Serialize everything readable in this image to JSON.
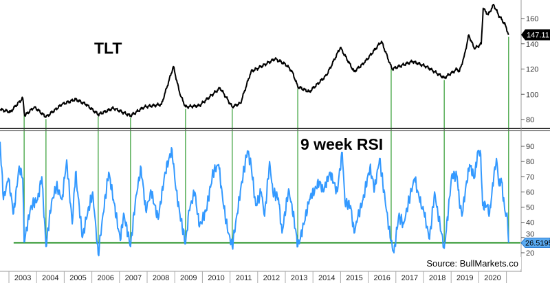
{
  "chart_data": [
    {
      "type": "line",
      "title": "TLT",
      "panel": "top",
      "ylim": [
        70,
        175
      ],
      "yticks": [
        80,
        100,
        120,
        140,
        160
      ],
      "last_value_label": "147.11",
      "last_value": 147.11,
      "line_color": "#000000",
      "x": [
        2002.68,
        2003.05,
        2003.5,
        2003.57,
        2003.92,
        2004.34,
        2004.92,
        2005.41,
        2005.79,
        2006.23,
        2006.78,
        2007.4,
        2007.9,
        2008.52,
        2008.95,
        2009.19,
        2009.39,
        2009.89,
        2010.64,
        2011.08,
        2011.38,
        2011.76,
        2012.13,
        2012.63,
        2013.0,
        2013.25,
        2013.45,
        2013.87,
        2014.49,
        2014.99,
        2015.49,
        2015.86,
        2016.48,
        2016.86,
        2017.6,
        2018.1,
        2018.75,
        2019.22,
        2019.3,
        2019.47,
        2019.64,
        2019.84,
        2020.09,
        2020.16,
        2020.34,
        2020.54,
        2020.71,
        2020.96,
        2021.08
      ],
      "y": [
        88,
        86,
        97,
        83,
        90,
        82,
        92,
        96,
        92,
        84,
        89,
        83,
        90,
        92,
        122,
        100,
        90,
        91,
        105,
        90,
        93,
        118,
        122,
        128,
        124,
        118,
        106,
        102,
        115,
        137,
        118,
        125,
        142,
        120,
        126,
        122,
        113,
        120,
        118,
        130,
        147,
        136,
        140,
        168,
        163,
        171,
        163,
        155,
        147.11
      ]
    },
    {
      "type": "line",
      "title": "9 week RSI",
      "panel": "bottom",
      "ylim": [
        16,
        98
      ],
      "yticks": [
        20,
        30,
        40,
        50,
        60,
        70,
        80,
        90
      ],
      "last_value_label": "26.5195",
      "last_value": 26.5195,
      "line_color": "#3399ff",
      "support_level": 26.5195,
      "support_color": "#1e8c1e",
      "x": [
        2002.68,
        2002.8,
        2002.98,
        2003.17,
        2003.37,
        2003.5,
        2003.55,
        2003.8,
        2004.04,
        2004.19,
        2004.34,
        2004.54,
        2004.72,
        2004.92,
        2005.09,
        2005.29,
        2005.41,
        2005.66,
        2005.79,
        2006.03,
        2006.23,
        2006.41,
        2006.61,
        2006.78,
        2007.03,
        2007.15,
        2007.4,
        2007.58,
        2007.78,
        2007.95,
        2008.15,
        2008.4,
        2008.65,
        2008.9,
        2009.04,
        2009.19,
        2009.39,
        2009.52,
        2009.72,
        2009.89,
        2010.14,
        2010.39,
        2010.59,
        2010.76,
        2010.94,
        2011.08,
        2011.26,
        2011.43,
        2011.63,
        2011.76,
        2011.93,
        2012.13,
        2012.25,
        2012.43,
        2012.55,
        2012.75,
        2012.88,
        2013.12,
        2013.32,
        2013.45,
        2013.62,
        2013.87,
        2014.07,
        2014.24,
        2014.37,
        2014.62,
        2014.87,
        2015.06,
        2015.16,
        2015.36,
        2015.49,
        2015.61,
        2015.81,
        2016.06,
        2016.23,
        2016.41,
        2016.61,
        2016.81,
        2016.93,
        2017.1,
        2017.28,
        2017.48,
        2017.68,
        2017.85,
        2018.02,
        2018.22,
        2018.4,
        2018.52,
        2018.75,
        2018.9,
        2019.02,
        2019.22,
        2019.29,
        2019.39,
        2019.52,
        2019.67,
        2019.84,
        2019.97,
        2020.07,
        2020.14,
        2020.29,
        2020.39,
        2020.54,
        2020.64,
        2020.74,
        2020.81,
        2020.94,
        2021.04,
        2021.06,
        2021.08
      ],
      "y": [
        93,
        55,
        69,
        46,
        77,
        69,
        27,
        51,
        55,
        70,
        24,
        53,
        64,
        55,
        81,
        39,
        73,
        30,
        42,
        60,
        19,
        46,
        73,
        55,
        28,
        46,
        24,
        55,
        76,
        48,
        60,
        42,
        73,
        88,
        62,
        45,
        26,
        48,
        60,
        37,
        48,
        73,
        78,
        51,
        33,
        24,
        46,
        67,
        87,
        78,
        51,
        60,
        44,
        80,
        60,
        56,
        33,
        62,
        42,
        24,
        35,
        55,
        62,
        67,
        60,
        73,
        60,
        86,
        53,
        51,
        33,
        42,
        55,
        76,
        62,
        82,
        55,
        28,
        20,
        44,
        39,
        55,
        69,
        55,
        46,
        29,
        60,
        46,
        23,
        48,
        71,
        70,
        55,
        44,
        62,
        78,
        69,
        87,
        85,
        51,
        51,
        46,
        69,
        82,
        64,
        69,
        48,
        42,
        33,
        26.52
      ]
    }
  ],
  "rsi_low_markers": [
    2003.55,
    2004.34,
    2006.23,
    2007.4,
    2009.39,
    2011.08,
    2013.45,
    2016.83,
    2018.75,
    2021.08
  ],
  "marker_color": "#2e9a2e",
  "xaxis": {
    "years": [
      "2003",
      "2004",
      "2005",
      "2006",
      "2007",
      "2008",
      "2009",
      "2010",
      "2011",
      "2012",
      "2013",
      "2014",
      "2015",
      "2016",
      "2017",
      "2018",
      "2019",
      "2020"
    ]
  },
  "labels": {
    "tlt": "TLT",
    "rsi": "9 week RSI",
    "source": "Source: BullMarkets.co"
  }
}
